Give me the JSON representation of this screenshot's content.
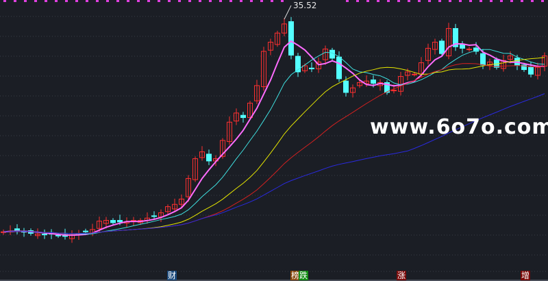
{
  "chart_data": {
    "type": "candlestick",
    "max_label": "35.52",
    "watermark": "www.6o7o.com",
    "close": [
      7.6,
      7.7,
      7.8,
      7.6,
      7.4,
      7.3,
      7.2,
      7.3,
      7.1,
      7.0,
      7.2,
      7.4,
      7.6,
      7.9,
      9.0,
      9.1,
      8.8,
      8.9,
      8.9,
      9.1,
      9.1,
      9.4,
      9.7,
      10.1,
      10.9,
      11.2,
      11.9,
      14.6,
      17.2,
      18.1,
      16.9,
      17.2,
      19.6,
      22.0,
      23.2,
      22.6,
      24.5,
      26.8,
      31.3,
      32.5,
      33.7,
      34.9,
      30.8,
      28.6,
      29.4,
      29.0,
      29.9,
      31.6,
      30.4,
      27.7,
      25.9,
      26.5,
      27.2,
      27.4,
      27.1,
      27.2,
      25.9,
      26.2,
      28.0,
      28.6,
      28.3,
      29.8,
      31.7,
      32.5,
      31.0,
      34.3,
      31.9,
      31.7,
      31.6,
      31.3,
      29.5,
      29.9,
      29.2,
      30.1,
      30.7,
      29.5,
      28.9,
      28.3,
      29.2,
      30.7
    ],
    "moving_averages": [
      {
        "period": 5,
        "color": "#ff6cff"
      },
      {
        "period": 10,
        "color": "#3fe0e0"
      },
      {
        "period": 20,
        "color": "#e6e600"
      },
      {
        "period": 30,
        "color": "#d42020"
      },
      {
        "period": 60,
        "color": "#2a2ae0"
      }
    ],
    "up_color": "#ff3030",
    "down_color": "#54ffff",
    "grid": true
  },
  "markers": [
    {
      "label": "财",
      "bg": "#1c4a7c"
    },
    {
      "label": "榜",
      "bg": "#8a4a10"
    },
    {
      "label": "跌",
      "bg": "#128a12"
    },
    {
      "label": "涨",
      "bg": "#7a0a0a"
    },
    {
      "label": "增",
      "bg": "#7a0a0a"
    }
  ]
}
